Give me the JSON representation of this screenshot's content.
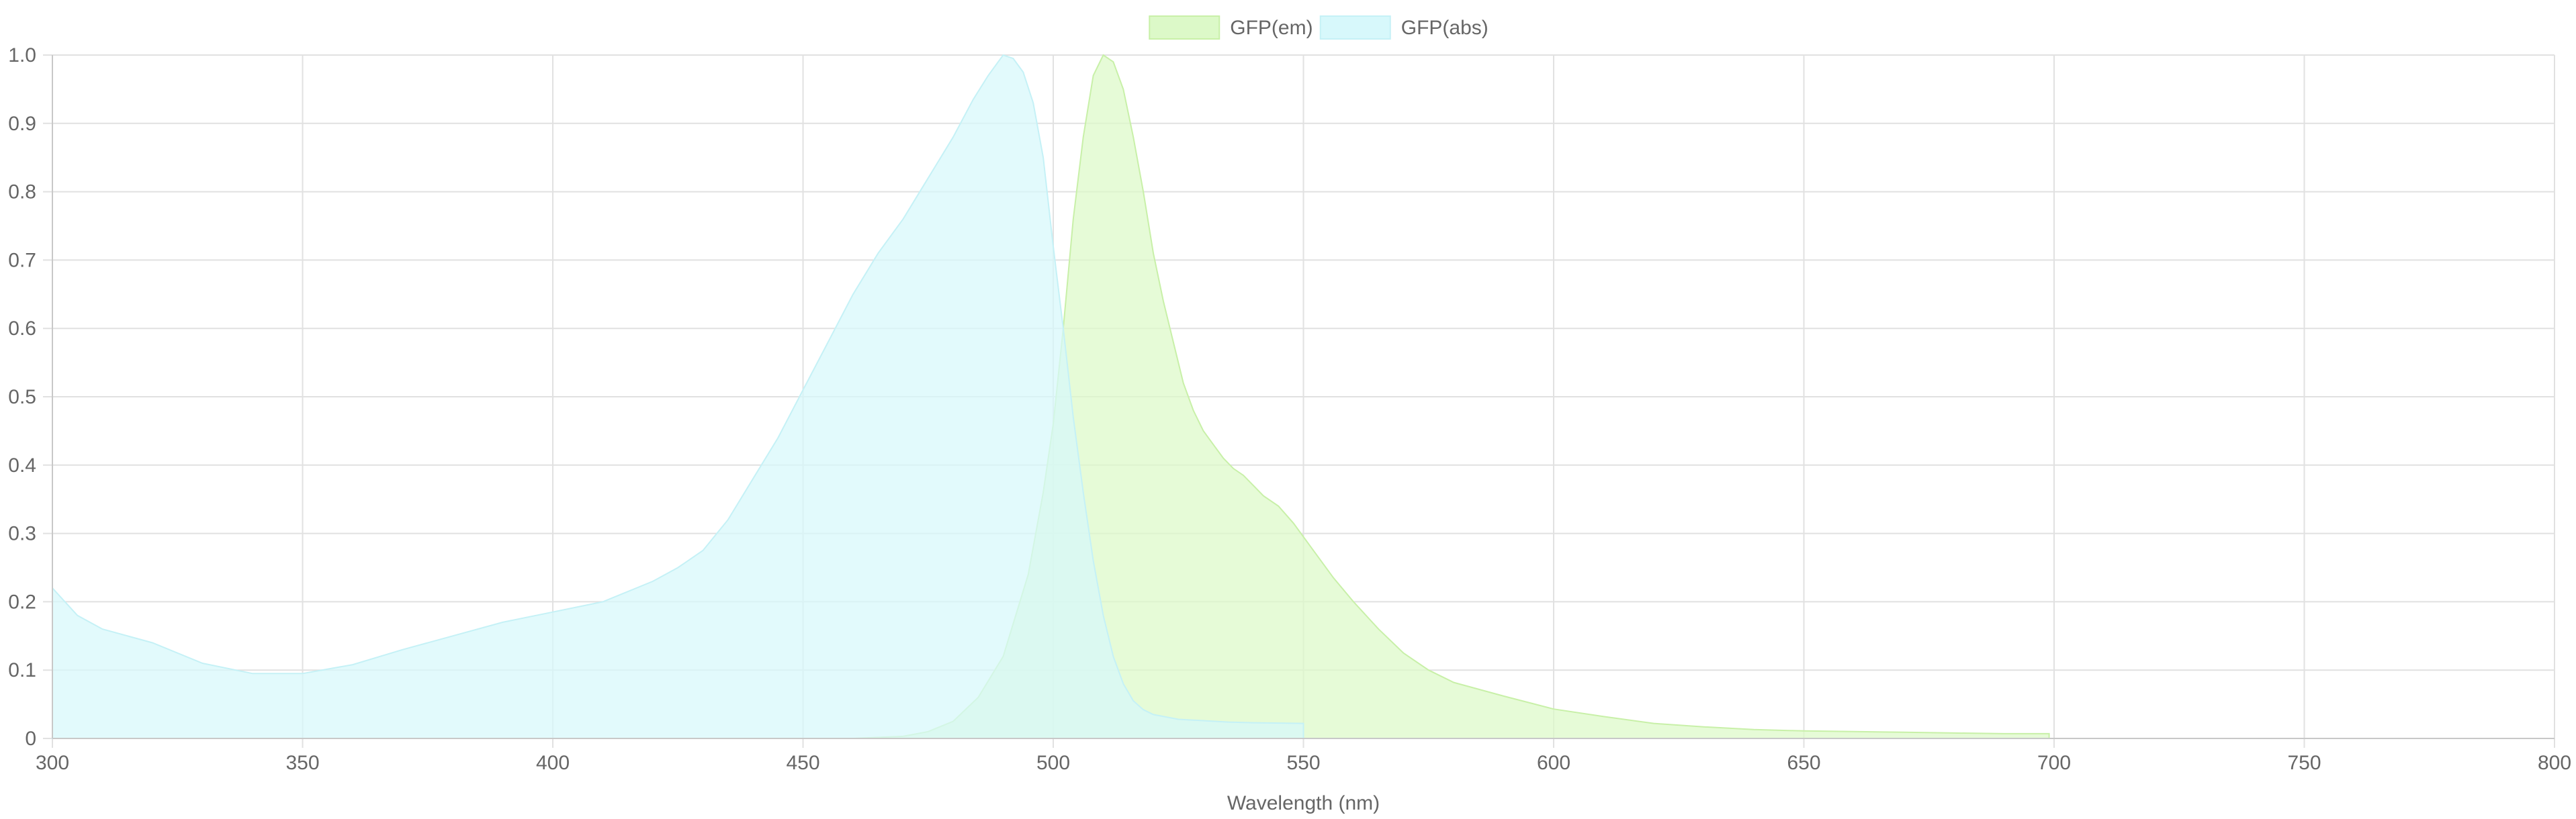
{
  "chart_data": {
    "type": "area",
    "title": "",
    "xlabel": "Wavelength (nm)",
    "ylabel": "",
    "xlim": [
      300,
      800
    ],
    "ylim": [
      0,
      1
    ],
    "x_ticks": [
      "300",
      "350",
      "400",
      "450",
      "500",
      "550",
      "600",
      "650",
      "700",
      "750",
      "800"
    ],
    "y_ticks": [
      "0",
      "0.1",
      "0.2",
      "0.3",
      "0.4",
      "0.5",
      "0.6",
      "0.7",
      "0.8",
      "0.9",
      "1.0"
    ],
    "grid": true,
    "legend_position": "top-center",
    "series": [
      {
        "name": "GFP(em)",
        "fill": "#dcf9c8",
        "stroke": "#c8f0a8",
        "points": [
          [
            460,
            0
          ],
          [
            470,
            0.003
          ],
          [
            475,
            0.01
          ],
          [
            480,
            0.025
          ],
          [
            485,
            0.06
          ],
          [
            490,
            0.12
          ],
          [
            495,
            0.24
          ],
          [
            498,
            0.36
          ],
          [
            500,
            0.46
          ],
          [
            502,
            0.6
          ],
          [
            504,
            0.76
          ],
          [
            506,
            0.88
          ],
          [
            508,
            0.97
          ],
          [
            510,
            1.0
          ],
          [
            512,
            0.99
          ],
          [
            514,
            0.95
          ],
          [
            516,
            0.88
          ],
          [
            518,
            0.8
          ],
          [
            520,
            0.71
          ],
          [
            522,
            0.64
          ],
          [
            524,
            0.58
          ],
          [
            526,
            0.52
          ],
          [
            528,
            0.48
          ],
          [
            530,
            0.45
          ],
          [
            532,
            0.43
          ],
          [
            534,
            0.41
          ],
          [
            536,
            0.395
          ],
          [
            538,
            0.385
          ],
          [
            540,
            0.37
          ],
          [
            542,
            0.355
          ],
          [
            545,
            0.34
          ],
          [
            548,
            0.315
          ],
          [
            550,
            0.295
          ],
          [
            553,
            0.265
          ],
          [
            556,
            0.235
          ],
          [
            560,
            0.2
          ],
          [
            565,
            0.16
          ],
          [
            570,
            0.125
          ],
          [
            575,
            0.1
          ],
          [
            580,
            0.082
          ],
          [
            590,
            0.062
          ],
          [
            600,
            0.043
          ],
          [
            610,
            0.032
          ],
          [
            620,
            0.022
          ],
          [
            630,
            0.017
          ],
          [
            640,
            0.013
          ],
          [
            650,
            0.011
          ],
          [
            660,
            0.01
          ],
          [
            670,
            0.009
          ],
          [
            680,
            0.008
          ],
          [
            690,
            0.007
          ],
          [
            699,
            0.007
          ],
          [
            699,
            0
          ]
        ]
      },
      {
        "name": "GFP(abs)",
        "fill": "#d7f8fb",
        "stroke": "#c5f1f6",
        "points": [
          [
            300,
            0
          ],
          [
            300,
            0.22
          ],
          [
            305,
            0.18
          ],
          [
            310,
            0.16
          ],
          [
            320,
            0.14
          ],
          [
            330,
            0.11
          ],
          [
            340,
            0.095
          ],
          [
            350,
            0.095
          ],
          [
            360,
            0.108
          ],
          [
            370,
            0.13
          ],
          [
            380,
            0.15
          ],
          [
            390,
            0.17
          ],
          [
            400,
            0.185
          ],
          [
            410,
            0.2
          ],
          [
            420,
            0.23
          ],
          [
            425,
            0.25
          ],
          [
            430,
            0.275
          ],
          [
            435,
            0.32
          ],
          [
            440,
            0.38
          ],
          [
            445,
            0.44
          ],
          [
            450,
            0.51
          ],
          [
            455,
            0.58
          ],
          [
            460,
            0.65
          ],
          [
            465,
            0.71
          ],
          [
            470,
            0.76
          ],
          [
            475,
            0.82
          ],
          [
            480,
            0.88
          ],
          [
            484,
            0.935
          ],
          [
            487,
            0.97
          ],
          [
            489,
            0.99
          ],
          [
            490,
            1.0
          ],
          [
            492,
            0.995
          ],
          [
            494,
            0.975
          ],
          [
            496,
            0.93
          ],
          [
            498,
            0.85
          ],
          [
            500,
            0.72
          ],
          [
            502,
            0.6
          ],
          [
            504,
            0.47
          ],
          [
            506,
            0.36
          ],
          [
            508,
            0.26
          ],
          [
            510,
            0.18
          ],
          [
            512,
            0.12
          ],
          [
            514,
            0.08
          ],
          [
            516,
            0.055
          ],
          [
            518,
            0.042
          ],
          [
            520,
            0.035
          ],
          [
            525,
            0.028
          ],
          [
            530,
            0.026
          ],
          [
            535,
            0.024
          ],
          [
            540,
            0.023
          ],
          [
            550,
            0.022
          ],
          [
            550,
            0
          ]
        ]
      }
    ]
  }
}
